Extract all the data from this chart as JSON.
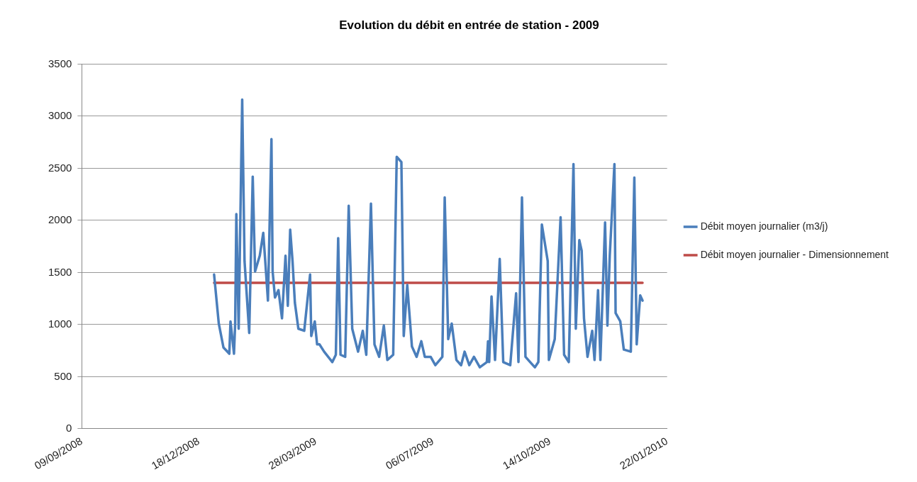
{
  "chart_data": {
    "type": "line",
    "title": "Evolution du débit en entrée de station - 2009",
    "xlim": [
      "2008-09-09",
      "2010-01-22"
    ],
    "xticks": [
      {
        "value": "2008-09-09",
        "label": "09/09/2008"
      },
      {
        "value": "2008-12-18",
        "label": "18/12/2008"
      },
      {
        "value": "2009-03-28",
        "label": "28/03/2009"
      },
      {
        "value": "2009-07-06",
        "label": "06/07/2009"
      },
      {
        "value": "2009-10-14",
        "label": "14/10/2009"
      },
      {
        "value": "2010-01-22",
        "label": "22/01/2010"
      }
    ],
    "ylim": [
      0,
      3500
    ],
    "yticks": [
      0,
      500,
      1000,
      1500,
      2000,
      2500,
      3000,
      3500
    ],
    "grid": "y",
    "legend": "right",
    "marker": "none",
    "line_style": "solid",
    "series": [
      {
        "name": "Débit moyen journalier (m3/j)",
        "color": "#4a7ebb",
        "x": [
          "2008-12-31",
          "2009-01-04",
          "2009-01-08",
          "2009-01-13",
          "2009-01-14",
          "2009-01-17",
          "2009-01-18",
          "2009-01-19",
          "2009-01-21",
          "2009-01-24",
          "2009-01-26",
          "2009-01-30",
          "2009-02-02",
          "2009-02-04",
          "2009-02-08",
          "2009-02-11",
          "2009-02-13",
          "2009-02-15",
          "2009-02-18",
          "2009-02-19",
          "2009-02-21",
          "2009-02-24",
          "2009-02-27",
          "2009-03-02",
          "2009-03-04",
          "2009-03-06",
          "2009-03-08",
          "2009-03-10",
          "2009-03-13",
          "2009-03-18",
          "2009-03-23",
          "2009-03-24",
          "2009-03-27",
          "2009-03-29",
          "2009-03-31",
          "2009-04-04",
          "2009-04-11",
          "2009-04-14",
          "2009-04-16",
          "2009-04-18",
          "2009-04-22",
          "2009-04-25",
          "2009-04-28",
          "2009-05-03",
          "2009-05-07",
          "2009-05-10",
          "2009-05-14",
          "2009-05-17",
          "2009-05-21",
          "2009-05-25",
          "2009-05-28",
          "2009-06-02",
          "2009-06-05",
          "2009-06-09",
          "2009-06-11",
          "2009-06-14",
          "2009-06-18",
          "2009-06-22",
          "2009-06-26",
          "2009-06-29",
          "2009-07-04",
          "2009-07-08",
          "2009-07-14",
          "2009-07-16",
          "2009-07-19",
          "2009-07-22",
          "2009-07-26",
          "2009-07-30",
          "2009-08-02",
          "2009-08-06",
          "2009-08-10",
          "2009-08-15",
          "2009-08-21",
          "2009-08-22",
          "2009-08-23",
          "2009-08-25",
          "2009-08-28",
          "2009-09-01",
          "2009-09-04",
          "2009-09-10",
          "2009-09-15",
          "2009-09-17",
          "2009-09-20",
          "2009-09-23",
          "2009-09-27",
          "2009-10-01",
          "2009-10-04",
          "2009-10-07",
          "2009-10-12",
          "2009-10-13",
          "2009-10-18",
          "2009-10-23",
          "2009-10-26",
          "2009-10-30",
          "2009-11-03",
          "2009-11-05",
          "2009-11-08",
          "2009-11-10",
          "2009-11-12",
          "2009-11-15",
          "2009-11-19",
          "2009-11-21",
          "2009-11-24",
          "2009-11-26",
          "2009-11-30",
          "2009-12-02",
          "2009-12-04",
          "2009-12-08",
          "2009-12-09",
          "2009-12-13",
          "2009-12-16",
          "2009-12-22",
          "2009-12-25",
          "2009-12-27",
          "2009-12-30",
          "2010-01-01"
        ],
        "values": [
          1480,
          1010,
          780,
          720,
          1030,
          720,
          1010,
          2060,
          960,
          3160,
          1610,
          920,
          2420,
          1510,
          1660,
          1880,
          1560,
          1230,
          2780,
          1510,
          1260,
          1330,
          1060,
          1660,
          1180,
          1910,
          1610,
          1210,
          960,
          940,
          1480,
          890,
          1030,
          810,
          810,
          740,
          640,
          710,
          1830,
          710,
          690,
          2140,
          960,
          740,
          940,
          710,
          2160,
          810,
          690,
          990,
          660,
          710,
          2610,
          2560,
          890,
          1380,
          790,
          690,
          840,
          690,
          690,
          610,
          690,
          2220,
          860,
          1010,
          660,
          610,
          740,
          610,
          690,
          590,
          640,
          840,
          640,
          1270,
          660,
          1630,
          640,
          610,
          1300,
          640,
          2220,
          690,
          640,
          590,
          640,
          1960,
          1610,
          660,
          860,
          2030,
          710,
          640,
          2540,
          960,
          1810,
          1710,
          1060,
          690,
          940,
          660,
          1330,
          660,
          1980,
          990,
          1660,
          2540,
          1110,
          1030,
          760,
          740,
          2410,
          810,
          1280,
          1230
        ]
      },
      {
        "name": "Débit moyen journalier - Dimensionnement",
        "color": "#be4b48",
        "x": [
          "2008-12-31",
          "2010-01-01"
        ],
        "values": [
          1400,
          1400
        ]
      }
    ]
  }
}
